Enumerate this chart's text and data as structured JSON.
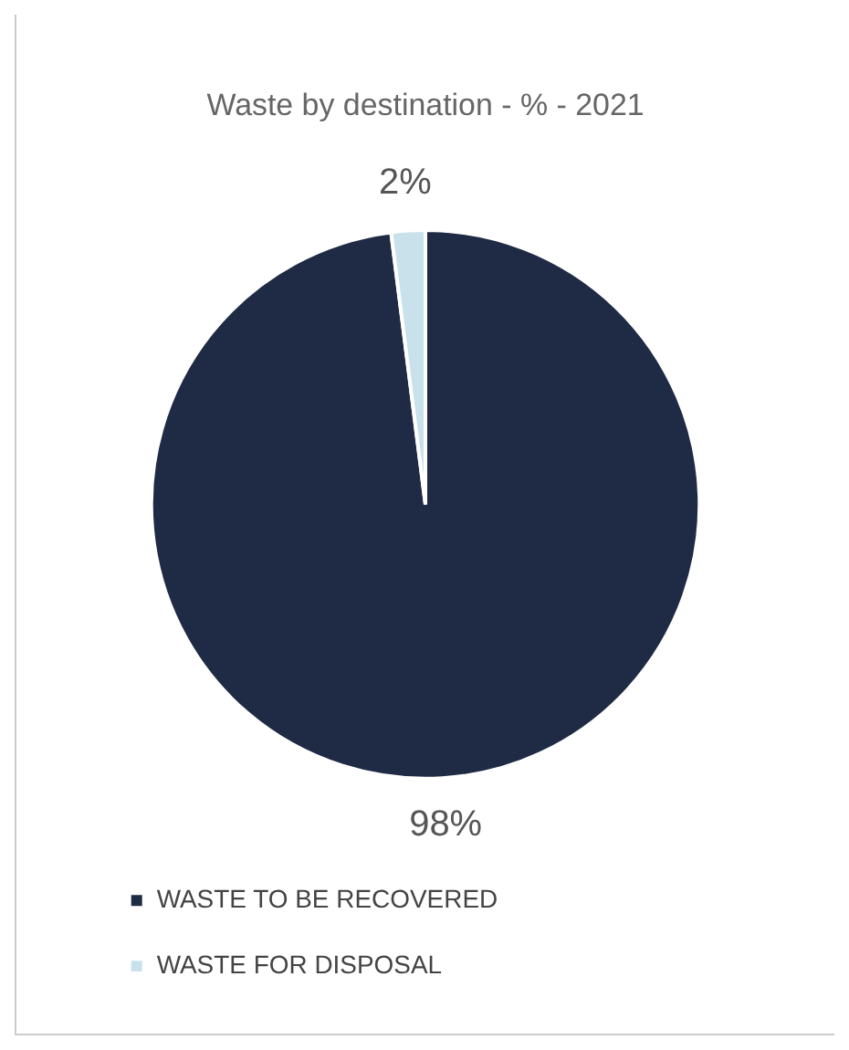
{
  "chart_data": {
    "type": "pie",
    "title": "Waste by destination - % - 2021",
    "categories": [
      "WASTE TO BE RECOVERED",
      "WASTE FOR DISPOSAL"
    ],
    "values": [
      98,
      2
    ],
    "colors": [
      "#1f2b44",
      "#c9e1ea"
    ],
    "value_labels": [
      "98%",
      "2%"
    ],
    "legend": "bottom left"
  }
}
